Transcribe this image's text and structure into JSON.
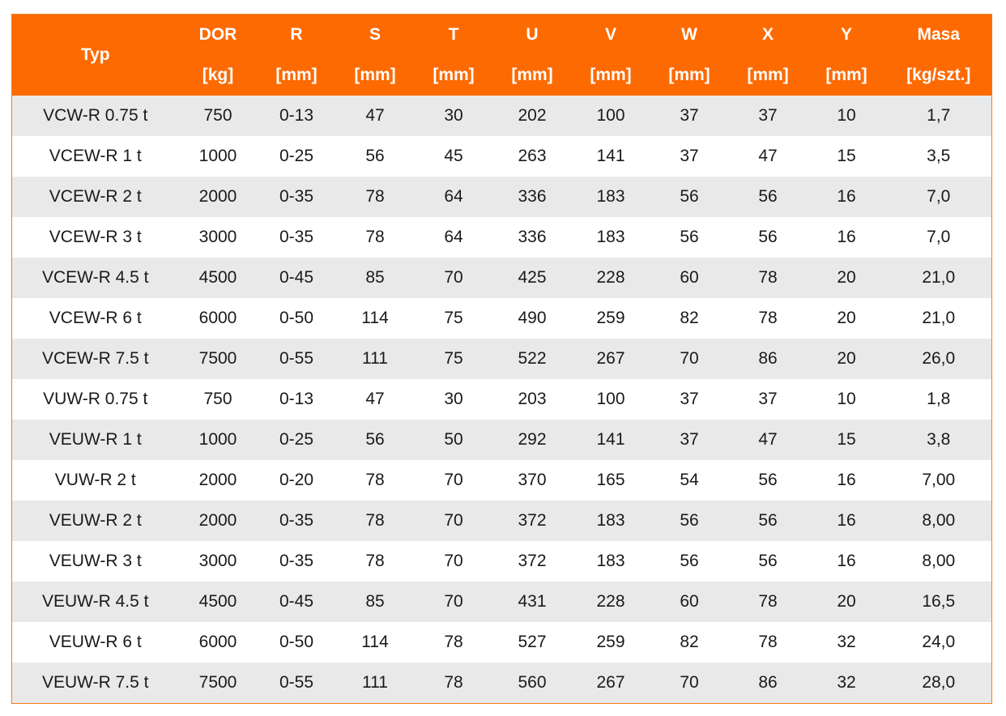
{
  "table": {
    "headers": {
      "typ": "Typ",
      "names": [
        "DOR",
        "R",
        "S",
        "T",
        "U",
        "V",
        "W",
        "X",
        "Y",
        "Masa"
      ],
      "units": [
        "[kg]",
        "[mm]",
        "[mm]",
        "[mm]",
        "[mm]",
        "[mm]",
        "[mm]",
        "[mm]",
        "[mm]",
        "[kg/szt.]"
      ]
    },
    "rows": [
      [
        "VCW-R 0.75 t",
        "750",
        "0-13",
        "47",
        "30",
        "202",
        "100",
        "37",
        "37",
        "10",
        "1,7"
      ],
      [
        "VCEW-R 1 t",
        "1000",
        "0-25",
        "56",
        "45",
        "263",
        "141",
        "37",
        "47",
        "15",
        "3,5"
      ],
      [
        "VCEW-R 2 t",
        "2000",
        "0-35",
        "78",
        "64",
        "336",
        "183",
        "56",
        "56",
        "16",
        "7,0"
      ],
      [
        "VCEW-R 3 t",
        "3000",
        "0-35",
        "78",
        "64",
        "336",
        "183",
        "56",
        "56",
        "16",
        "7,0"
      ],
      [
        "VCEW-R 4.5 t",
        "4500",
        "0-45",
        "85",
        "70",
        "425",
        "228",
        "60",
        "78",
        "20",
        "21,0"
      ],
      [
        "VCEW-R 6 t",
        "6000",
        "0-50",
        "114",
        "75",
        "490",
        "259",
        "82",
        "78",
        "20",
        "21,0"
      ],
      [
        "VCEW-R 7.5 t",
        "7500",
        "0-55",
        "111",
        "75",
        "522",
        "267",
        "70",
        "86",
        "20",
        "26,0"
      ],
      [
        "VUW-R 0.75 t",
        "750",
        "0-13",
        "47",
        "30",
        "203",
        "100",
        "37",
        "37",
        "10",
        "1,8"
      ],
      [
        "VEUW-R 1 t",
        "1000",
        "0-25",
        "56",
        "50",
        "292",
        "141",
        "37",
        "47",
        "15",
        "3,8"
      ],
      [
        "VUW-R 2 t",
        "2000",
        "0-20",
        "78",
        "70",
        "370",
        "165",
        "54",
        "56",
        "16",
        "7,00"
      ],
      [
        "VEUW-R 2 t",
        "2000",
        "0-35",
        "78",
        "70",
        "372",
        "183",
        "56",
        "56",
        "16",
        "8,00"
      ],
      [
        "VEUW-R 3 t",
        "3000",
        "0-35",
        "78",
        "70",
        "372",
        "183",
        "56",
        "56",
        "16",
        "8,00"
      ],
      [
        "VEUW-R 4.5 t",
        "4500",
        "0-45",
        "85",
        "70",
        "431",
        "228",
        "60",
        "78",
        "20",
        "16,5"
      ],
      [
        "VEUW-R 6 t",
        "6000",
        "0-50",
        "114",
        "78",
        "527",
        "259",
        "82",
        "78",
        "32",
        "24,0"
      ],
      [
        "VEUW-R 7.5 t",
        "7500",
        "0-55",
        "111",
        "78",
        "560",
        "267",
        "70",
        "86",
        "32",
        "28,0"
      ]
    ]
  },
  "colors": {
    "header_bg": "#fe6a02",
    "header_text": "#ffffff",
    "row_stripe": "#e9e9e9",
    "border": "#f07d1c"
  }
}
